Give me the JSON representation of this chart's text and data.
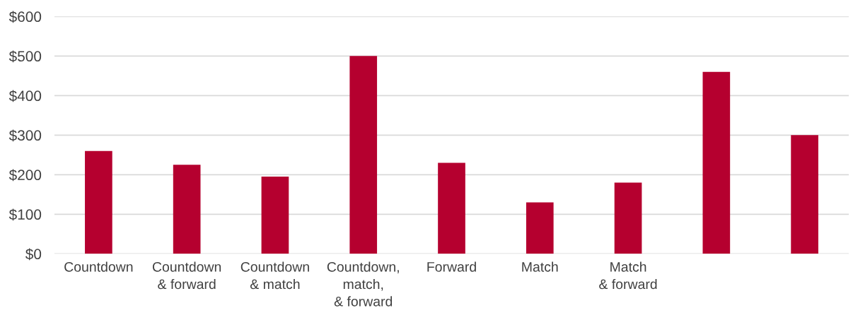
{
  "chart_data": {
    "type": "bar",
    "categories": [
      "Countdown",
      "Countdown\n& forward",
      "Countdown\n& match",
      "Countdown,\nmatch,\n& forward",
      "Forward",
      "Match",
      "Match\n& forward",
      null,
      null
    ],
    "values": [
      260,
      225,
      195,
      500,
      230,
      130,
      180,
      460,
      300
    ],
    "color": "#b5002f",
    "ylim": [
      0,
      600
    ],
    "yticks": [
      {
        "value": 0,
        "label": "$0"
      },
      {
        "value": 100,
        "label": "$100"
      },
      {
        "value": 200,
        "label": "$200"
      },
      {
        "value": 300,
        "label": "$300"
      },
      {
        "value": 400,
        "label": "$400"
      },
      {
        "value": 500,
        "label": "$500"
      },
      {
        "value": 600,
        "label": "$600"
      }
    ],
    "grid": "y"
  }
}
